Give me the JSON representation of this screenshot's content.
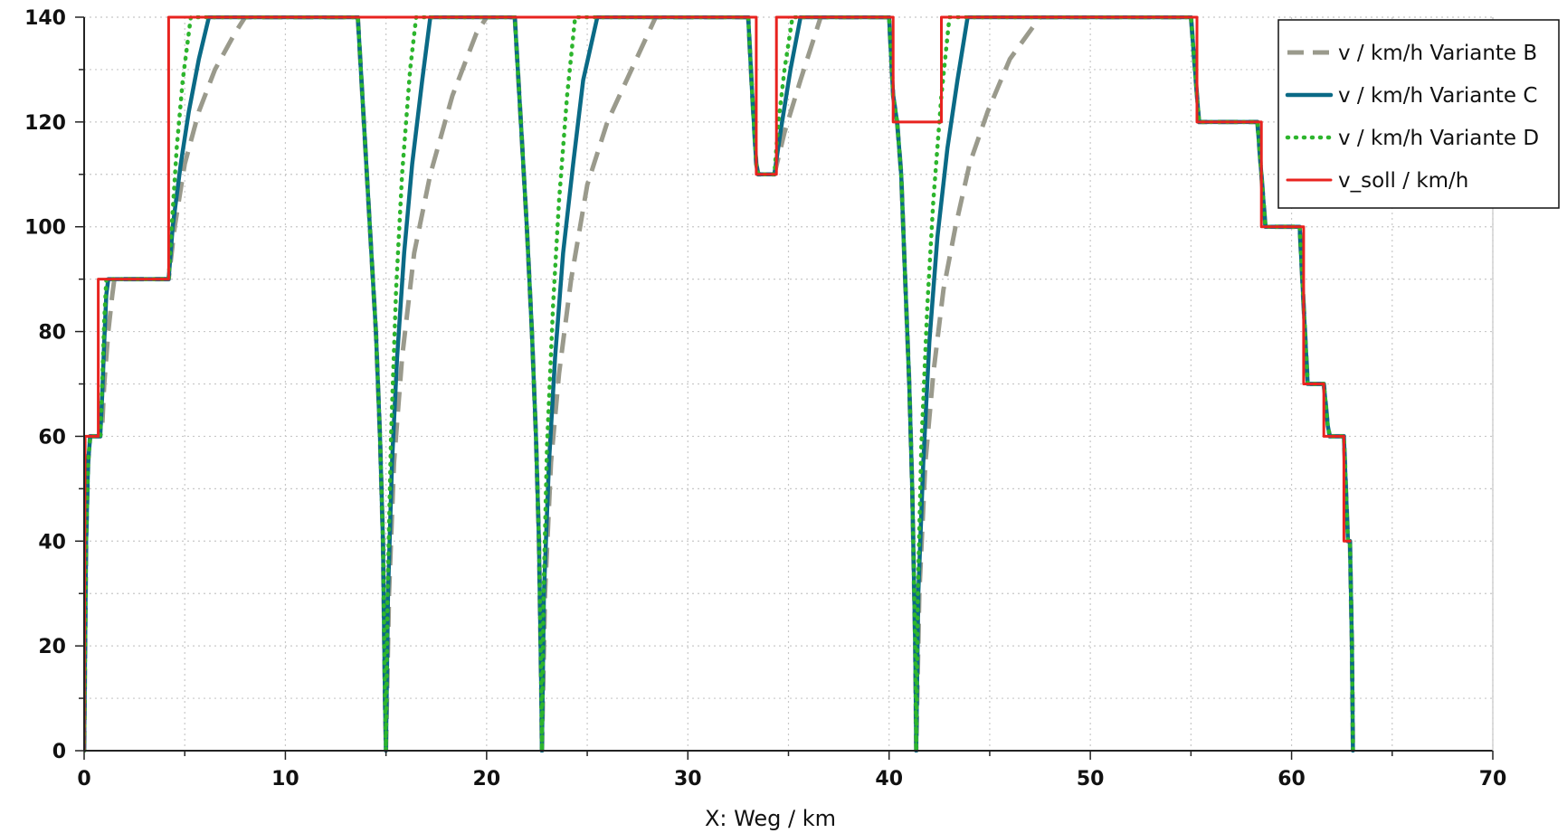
{
  "chart_data": {
    "type": "line",
    "xlabel": "X: Weg / km",
    "ylabel": "",
    "xlim": [
      0,
      70
    ],
    "ylim": [
      0,
      140
    ],
    "x_ticks": [
      0,
      10,
      20,
      30,
      40,
      50,
      60,
      70
    ],
    "y_ticks": [
      0,
      20,
      40,
      60,
      80,
      100,
      120,
      140
    ],
    "grid": true,
    "legend_position": "top-right",
    "series": [
      {
        "name": "v / km/h Variante B",
        "color": "#9a9a8c",
        "style": "dashed",
        "points": [
          [
            0,
            0
          ],
          [
            0.1,
            40
          ],
          [
            0.2,
            55
          ],
          [
            0.3,
            60
          ],
          [
            0.8,
            60
          ],
          [
            0.9,
            62
          ],
          [
            1.0,
            70
          ],
          [
            1.2,
            80
          ],
          [
            1.4,
            87
          ],
          [
            1.5,
            90
          ],
          [
            4.2,
            90
          ],
          [
            4.5,
            100
          ],
          [
            5.0,
            112
          ],
          [
            5.7,
            122
          ],
          [
            6.5,
            130
          ],
          [
            7.5,
            137
          ],
          [
            8.0,
            140
          ],
          [
            13.6,
            140
          ],
          [
            13.9,
            120
          ],
          [
            14.2,
            100
          ],
          [
            14.5,
            80
          ],
          [
            14.7,
            60
          ],
          [
            14.85,
            40
          ],
          [
            14.95,
            10
          ],
          [
            15.0,
            0
          ],
          [
            15.15,
            30
          ],
          [
            15.4,
            55
          ],
          [
            15.8,
            75
          ],
          [
            16.4,
            95
          ],
          [
            17.2,
            110
          ],
          [
            18.3,
            125
          ],
          [
            19.5,
            137
          ],
          [
            20.0,
            140
          ],
          [
            21.4,
            140
          ],
          [
            21.7,
            120
          ],
          [
            22.0,
            100
          ],
          [
            22.25,
            80
          ],
          [
            22.45,
            60
          ],
          [
            22.6,
            40
          ],
          [
            22.72,
            10
          ],
          [
            22.75,
            0
          ],
          [
            22.9,
            30
          ],
          [
            23.2,
            55
          ],
          [
            23.6,
            72
          ],
          [
            24.2,
            90
          ],
          [
            25.0,
            108
          ],
          [
            26.0,
            120
          ],
          [
            27.2,
            130
          ],
          [
            28.4,
            140
          ],
          [
            33.0,
            140
          ],
          [
            33.2,
            125
          ],
          [
            33.4,
            112
          ],
          [
            33.5,
            110
          ],
          [
            34.3,
            110
          ],
          [
            34.8,
            118
          ],
          [
            35.6,
            128
          ],
          [
            36.6,
            140
          ],
          [
            40.0,
            140
          ],
          [
            40.2,
            125
          ],
          [
            40.4,
            120
          ],
          [
            40.6,
            110
          ],
          [
            40.8,
            90
          ],
          [
            41.0,
            70
          ],
          [
            41.15,
            50
          ],
          [
            41.3,
            20
          ],
          [
            41.35,
            0
          ],
          [
            41.5,
            30
          ],
          [
            41.8,
            55
          ],
          [
            42.2,
            72
          ],
          [
            42.7,
            88
          ],
          [
            43.3,
            100
          ],
          [
            44.0,
            112
          ],
          [
            44.9,
            122
          ],
          [
            46.0,
            132
          ],
          [
            47.5,
            140
          ],
          [
            55.0,
            140
          ],
          [
            55.2,
            130
          ],
          [
            55.4,
            120
          ],
          [
            58.3,
            120
          ],
          [
            58.5,
            110
          ],
          [
            58.7,
            100
          ],
          [
            60.4,
            100
          ],
          [
            60.6,
            85
          ],
          [
            60.8,
            70
          ],
          [
            61.6,
            70
          ],
          [
            61.8,
            62
          ],
          [
            61.9,
            60
          ],
          [
            62.6,
            60
          ],
          [
            62.8,
            40
          ],
          [
            62.9,
            40
          ],
          [
            63.0,
            20
          ],
          [
            63.05,
            0
          ]
        ]
      },
      {
        "name": "v / km/h Variante C",
        "color": "#0a6a86",
        "style": "solid",
        "points": [
          [
            0,
            0
          ],
          [
            0.1,
            40
          ],
          [
            0.2,
            55
          ],
          [
            0.3,
            60
          ],
          [
            0.8,
            60
          ],
          [
            0.9,
            68
          ],
          [
            1.0,
            78
          ],
          [
            1.1,
            87
          ],
          [
            1.2,
            90
          ],
          [
            4.2,
            90
          ],
          [
            4.4,
            100
          ],
          [
            4.8,
            112
          ],
          [
            5.2,
            122
          ],
          [
            5.7,
            132
          ],
          [
            6.2,
            140
          ],
          [
            13.6,
            140
          ],
          [
            13.9,
            120
          ],
          [
            14.2,
            100
          ],
          [
            14.5,
            80
          ],
          [
            14.7,
            60
          ],
          [
            14.85,
            40
          ],
          [
            14.95,
            10
          ],
          [
            15.0,
            0
          ],
          [
            15.1,
            30
          ],
          [
            15.3,
            55
          ],
          [
            15.55,
            75
          ],
          [
            15.9,
            95
          ],
          [
            16.3,
            112
          ],
          [
            16.8,
            128
          ],
          [
            17.2,
            140
          ],
          [
            21.4,
            140
          ],
          [
            21.7,
            120
          ],
          [
            22.0,
            100
          ],
          [
            22.25,
            80
          ],
          [
            22.45,
            60
          ],
          [
            22.6,
            40
          ],
          [
            22.72,
            10
          ],
          [
            22.75,
            0
          ],
          [
            22.85,
            30
          ],
          [
            23.1,
            55
          ],
          [
            23.4,
            75
          ],
          [
            23.8,
            95
          ],
          [
            24.3,
            112
          ],
          [
            24.8,
            128
          ],
          [
            25.5,
            140
          ],
          [
            33.0,
            140
          ],
          [
            33.2,
            125
          ],
          [
            33.4,
            112
          ],
          [
            33.5,
            110
          ],
          [
            34.3,
            110
          ],
          [
            34.6,
            118
          ],
          [
            35.1,
            130
          ],
          [
            35.6,
            140
          ],
          [
            40.0,
            140
          ],
          [
            40.2,
            125
          ],
          [
            40.4,
            120
          ],
          [
            40.6,
            110
          ],
          [
            40.8,
            90
          ],
          [
            41.0,
            70
          ],
          [
            41.15,
            50
          ],
          [
            41.3,
            20
          ],
          [
            41.35,
            0
          ],
          [
            41.45,
            30
          ],
          [
            41.7,
            55
          ],
          [
            42.0,
            78
          ],
          [
            42.4,
            98
          ],
          [
            42.9,
            115
          ],
          [
            43.4,
            128
          ],
          [
            43.9,
            140
          ],
          [
            55.0,
            140
          ],
          [
            55.2,
            130
          ],
          [
            55.4,
            120
          ],
          [
            58.3,
            120
          ],
          [
            58.5,
            110
          ],
          [
            58.7,
            100
          ],
          [
            60.4,
            100
          ],
          [
            60.6,
            85
          ],
          [
            60.8,
            70
          ],
          [
            61.6,
            70
          ],
          [
            61.8,
            62
          ],
          [
            61.9,
            60
          ],
          [
            62.6,
            60
          ],
          [
            62.8,
            40
          ],
          [
            62.9,
            40
          ],
          [
            63.0,
            20
          ],
          [
            63.05,
            0
          ]
        ]
      },
      {
        "name": "v / km/h Variante D",
        "color": "#2db52d",
        "style": "dotted",
        "points": [
          [
            0,
            0
          ],
          [
            0.1,
            40
          ],
          [
            0.2,
            55
          ],
          [
            0.3,
            60
          ],
          [
            0.8,
            60
          ],
          [
            0.9,
            70
          ],
          [
            1.0,
            82
          ],
          [
            1.1,
            90
          ],
          [
            4.2,
            90
          ],
          [
            4.35,
            100
          ],
          [
            4.6,
            115
          ],
          [
            4.9,
            128
          ],
          [
            5.3,
            140
          ],
          [
            13.6,
            140
          ],
          [
            13.9,
            120
          ],
          [
            14.2,
            100
          ],
          [
            14.5,
            80
          ],
          [
            14.7,
            60
          ],
          [
            14.85,
            40
          ],
          [
            14.95,
            10
          ],
          [
            15.0,
            0
          ],
          [
            15.08,
            30
          ],
          [
            15.25,
            60
          ],
          [
            15.5,
            88
          ],
          [
            15.8,
            110
          ],
          [
            16.2,
            130
          ],
          [
            16.5,
            140
          ],
          [
            21.4,
            140
          ],
          [
            21.7,
            120
          ],
          [
            22.0,
            100
          ],
          [
            22.25,
            80
          ],
          [
            22.45,
            60
          ],
          [
            22.6,
            40
          ],
          [
            22.72,
            10
          ],
          [
            22.75,
            0
          ],
          [
            22.83,
            30
          ],
          [
            23.0,
            58
          ],
          [
            23.3,
            85
          ],
          [
            23.6,
            105
          ],
          [
            24.0,
            125
          ],
          [
            24.4,
            140
          ],
          [
            33.0,
            140
          ],
          [
            33.2,
            125
          ],
          [
            33.4,
            112
          ],
          [
            33.5,
            110
          ],
          [
            34.3,
            110
          ],
          [
            34.5,
            120
          ],
          [
            34.8,
            130
          ],
          [
            35.2,
            140
          ],
          [
            40.0,
            140
          ],
          [
            40.2,
            125
          ],
          [
            40.4,
            120
          ],
          [
            40.6,
            110
          ],
          [
            40.8,
            90
          ],
          [
            41.0,
            70
          ],
          [
            41.15,
            50
          ],
          [
            41.3,
            20
          ],
          [
            41.35,
            0
          ],
          [
            41.43,
            30
          ],
          [
            41.6,
            58
          ],
          [
            41.9,
            85
          ],
          [
            42.2,
            105
          ],
          [
            42.6,
            125
          ],
          [
            43.0,
            140
          ],
          [
            55.0,
            140
          ],
          [
            55.2,
            130
          ],
          [
            55.4,
            120
          ],
          [
            58.3,
            120
          ],
          [
            58.5,
            110
          ],
          [
            58.7,
            100
          ],
          [
            60.4,
            100
          ],
          [
            60.6,
            85
          ],
          [
            60.8,
            70
          ],
          [
            61.6,
            70
          ],
          [
            61.8,
            62
          ],
          [
            61.9,
            60
          ],
          [
            62.6,
            60
          ],
          [
            62.8,
            40
          ],
          [
            62.9,
            40
          ],
          [
            63.0,
            20
          ],
          [
            63.05,
            0
          ]
        ]
      },
      {
        "name": "v_soll / km/h",
        "color": "#e8231f",
        "style": "solid",
        "points": [
          [
            0,
            0
          ],
          [
            0.05,
            60
          ],
          [
            0.7,
            60
          ],
          [
            0.7,
            90
          ],
          [
            4.2,
            90
          ],
          [
            4.2,
            140
          ],
          [
            33.4,
            140
          ],
          [
            33.4,
            110
          ],
          [
            34.4,
            110
          ],
          [
            34.4,
            140
          ],
          [
            40.2,
            140
          ],
          [
            40.2,
            120
          ],
          [
            42.6,
            120
          ],
          [
            42.6,
            140
          ],
          [
            55.3,
            140
          ],
          [
            55.3,
            120
          ],
          [
            58.5,
            120
          ],
          [
            58.5,
            100
          ],
          [
            60.6,
            100
          ],
          [
            60.6,
            70
          ],
          [
            61.6,
            70
          ],
          [
            61.6,
            60
          ],
          [
            62.6,
            60
          ],
          [
            62.6,
            40
          ],
          [
            62.9,
            40
          ]
        ]
      }
    ]
  }
}
